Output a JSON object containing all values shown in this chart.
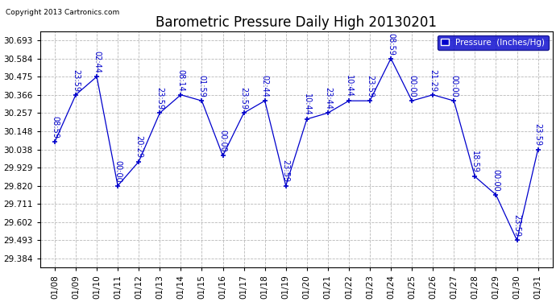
{
  "title": "Barometric Pressure Daily High 20130201",
  "copyright": "Copyright 2013 Cartronics.com",
  "legend_label": "Pressure  (Inches/Hg)",
  "points": [
    [
      "01/08",
      30.083,
      "08:59"
    ],
    [
      "01/09",
      30.366,
      "23:59"
    ],
    [
      "01/10",
      30.475,
      "02:44"
    ],
    [
      "01/11",
      29.82,
      "00:00"
    ],
    [
      "01/12",
      29.965,
      "20:29"
    ],
    [
      "01/13",
      30.257,
      "23:59"
    ],
    [
      "01/14",
      30.366,
      "08:14"
    ],
    [
      "01/15",
      30.33,
      "01:59"
    ],
    [
      "01/16",
      30.0,
      "00:00"
    ],
    [
      "01/17",
      30.257,
      "23:59"
    ],
    [
      "01/18",
      30.33,
      "02:44"
    ],
    [
      "01/19",
      29.82,
      "23:59"
    ],
    [
      "01/20",
      30.22,
      "10:44"
    ],
    [
      "01/21",
      30.257,
      "23:44"
    ],
    [
      "01/22",
      30.33,
      "10:44"
    ],
    [
      "01/23",
      30.33,
      "23:59"
    ],
    [
      "01/24",
      30.584,
      "08:59"
    ],
    [
      "01/25",
      30.33,
      "00:00"
    ],
    [
      "01/26",
      30.366,
      "21:29"
    ],
    [
      "01/27",
      30.33,
      "00:00"
    ],
    [
      "01/28",
      29.875,
      "18:59"
    ],
    [
      "01/29",
      29.766,
      "00:00"
    ],
    [
      "01/30",
      29.493,
      "23:59"
    ],
    [
      "01/31",
      30.038,
      "23:59"
    ]
  ],
  "line_color": "#0000cc",
  "background_color": "#ffffff",
  "grid_color": "#b8b8b8",
  "title_fontsize": 12,
  "copyright_fontsize": 6.5,
  "tick_fontsize": 7.5,
  "annot_fontsize": 7,
  "ylim_min": 29.33,
  "ylim_max": 30.748,
  "yticks": [
    29.384,
    29.493,
    29.602,
    29.711,
    29.82,
    29.929,
    30.038,
    30.148,
    30.257,
    30.366,
    30.475,
    30.584,
    30.693
  ],
  "legend_facecolor": "#0000cc",
  "legend_edgecolor": "#000080"
}
